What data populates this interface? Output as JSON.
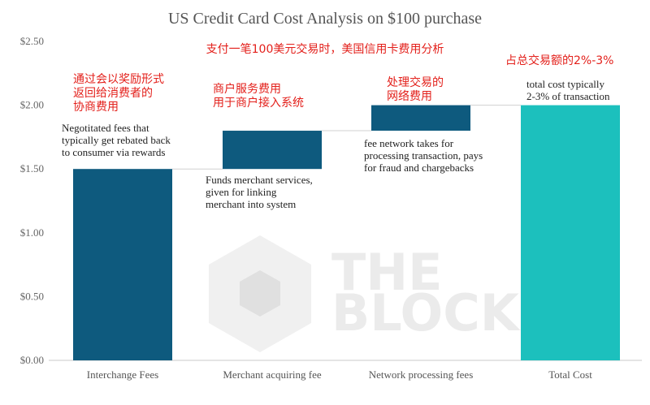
{
  "chart_data": {
    "type": "bar",
    "subtype": "waterfall",
    "title": "US Credit Card Cost Analysis on $100 purchase",
    "categories": [
      "Interchange Fees",
      "Merchant acquiring fee",
      "Network processing fees",
      "Total Cost"
    ],
    "series": [
      {
        "bases": [
          0,
          1.5,
          1.8,
          0
        ],
        "values": [
          1.5,
          0.3,
          0.2,
          2.0
        ],
        "colors": [
          "#0e5a7e",
          "#0e5a7e",
          "#0e5a7e",
          "#1cc0bd"
        ]
      }
    ],
    "ylim": [
      0,
      2.5
    ],
    "yticks": [
      "$0.00",
      "$0.50",
      "$1.00",
      "$1.50",
      "$2.00",
      "$2.50"
    ],
    "grid": false,
    "legend": "none",
    "annotations": [
      [
        "Negotitated fees that",
        "typically get rebated back",
        "to consumer via rewards"
      ],
      [
        "Funds merchant services,",
        "given for linking",
        "merchant into system"
      ],
      [
        "fee network takes for",
        "processing transaction, pays",
        "for fraud and chargebacks"
      ],
      [
        "total cost typically",
        "2-3% of transaction"
      ]
    ],
    "annotations_cn": {
      "header": "支付一笔100美元交易时，美国信用卡费用分析",
      "interchange": [
        "通过会以奖励形式",
        "返回给消费者的",
        "协商费用"
      ],
      "merchant": [
        "商户服务费用",
        "用于商户接入系统"
      ],
      "network": [
        "处理交易的",
        "网络费用"
      ],
      "total": "占总交易额的2%-3%"
    }
  },
  "watermark": {
    "line1": "THE",
    "line2": "BLOCK"
  }
}
